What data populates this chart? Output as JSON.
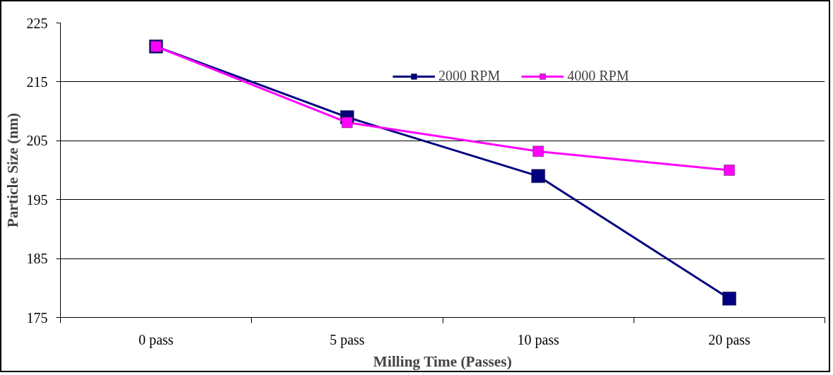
{
  "chart_data": {
    "type": "line",
    "xlabel": "Milling Time (Passes)",
    "ylabel": "Particle Size (nm)",
    "categories": [
      "0 pass",
      "5 pass",
      "10 pass",
      "20 pass"
    ],
    "series": [
      {
        "name": "2000 RPM",
        "color": "#000080",
        "values": [
          221,
          209,
          199,
          178.2
        ]
      },
      {
        "name": "4000 RPM",
        "color": "#ff00ff",
        "values": [
          221,
          208.1,
          203.2,
          200
        ]
      }
    ],
    "ylim": [
      175,
      225
    ],
    "yticks": [
      175,
      185,
      195,
      205,
      215,
      225
    ],
    "grid": "y",
    "legend": "top right",
    "marker": "square",
    "line_style": "solid"
  }
}
